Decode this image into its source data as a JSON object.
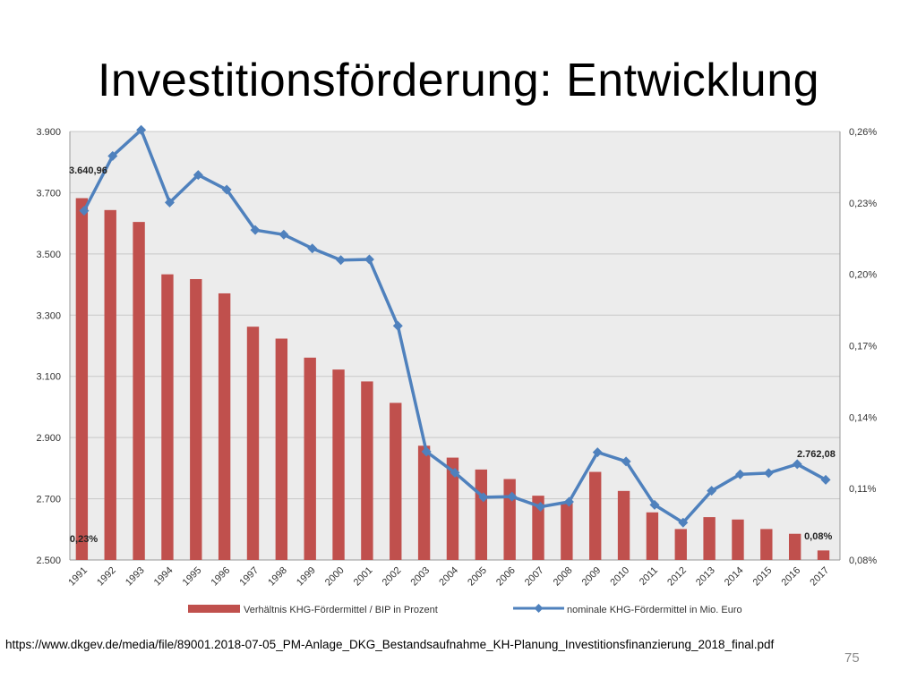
{
  "slide": {
    "title": "Investitionsförderung: Entwicklung",
    "source": "https://www.dkgev.de/media/file/89001.2018-07-05_PM-Anlage_DKG_Bestandsaufnahme_KH-Planung_Investitionsfinanzierung_2018_final.pdf",
    "page_number": "75"
  },
  "chart_data": {
    "type": "bar",
    "title": "",
    "categories": [
      "1991",
      "1992",
      "1993",
      "1994",
      "1995",
      "1996",
      "1997",
      "1998",
      "1999",
      "2000",
      "2001",
      "2002",
      "2003",
      "2004",
      "2005",
      "2006",
      "2007",
      "2008",
      "2009",
      "2010",
      "2011",
      "2012",
      "2013",
      "2014",
      "2015",
      "2016",
      "2017"
    ],
    "left_axis": {
      "min": 2500,
      "max": 3900,
      "ticks": [
        "2.500",
        "2.700",
        "2.900",
        "3.100",
        "3.300",
        "3.500",
        "3.700",
        "3.900"
      ]
    },
    "right_axis": {
      "min": 0.08,
      "max": 0.26,
      "ticks": [
        "0,08%",
        "0,11%",
        "0,14%",
        "0,17%",
        "0,20%",
        "0,23%",
        "0,26%"
      ]
    },
    "grid": true,
    "series": [
      {
        "name": "Verhältnis KHG-Fördermittel / BIP in Prozent",
        "type": "bar",
        "axis": "right",
        "color": "#c0504d",
        "values": [
          0.232,
          0.227,
          0.222,
          0.2,
          0.198,
          0.192,
          0.178,
          0.173,
          0.165,
          0.16,
          0.155,
          0.146,
          0.128,
          0.123,
          0.118,
          0.114,
          0.107,
          0.104,
          0.117,
          0.109,
          0.1,
          0.093,
          0.098,
          0.097,
          0.093,
          0.091,
          0.084
        ],
        "labels": [
          {
            "index": 0,
            "text": "0,23%"
          },
          {
            "index": 26,
            "text": "0,08%"
          }
        ]
      },
      {
        "name": "nominale KHG-Fördermittel in Mio. Euro",
        "type": "line",
        "axis": "left",
        "color": "#4f81bd",
        "values": [
          3640.96,
          3820,
          3905,
          3668,
          3758,
          3710,
          3578,
          3563,
          3518,
          3480,
          3482,
          3265,
          2854,
          2785,
          2705,
          2707,
          2674,
          2690,
          2852,
          2822,
          2680,
          2622,
          2726,
          2780,
          2784,
          2813,
          2762.08
        ],
        "labels": [
          {
            "index": 0,
            "text": "3.640,96"
          },
          {
            "index": 26,
            "text": "2.762,08"
          }
        ]
      }
    ],
    "legend": {
      "position": "bottom"
    }
  },
  "colors": {
    "plot_background": "#ececec",
    "gridline": "#c8c8c8",
    "bar": "#c0504d",
    "line": "#4f81bd"
  }
}
